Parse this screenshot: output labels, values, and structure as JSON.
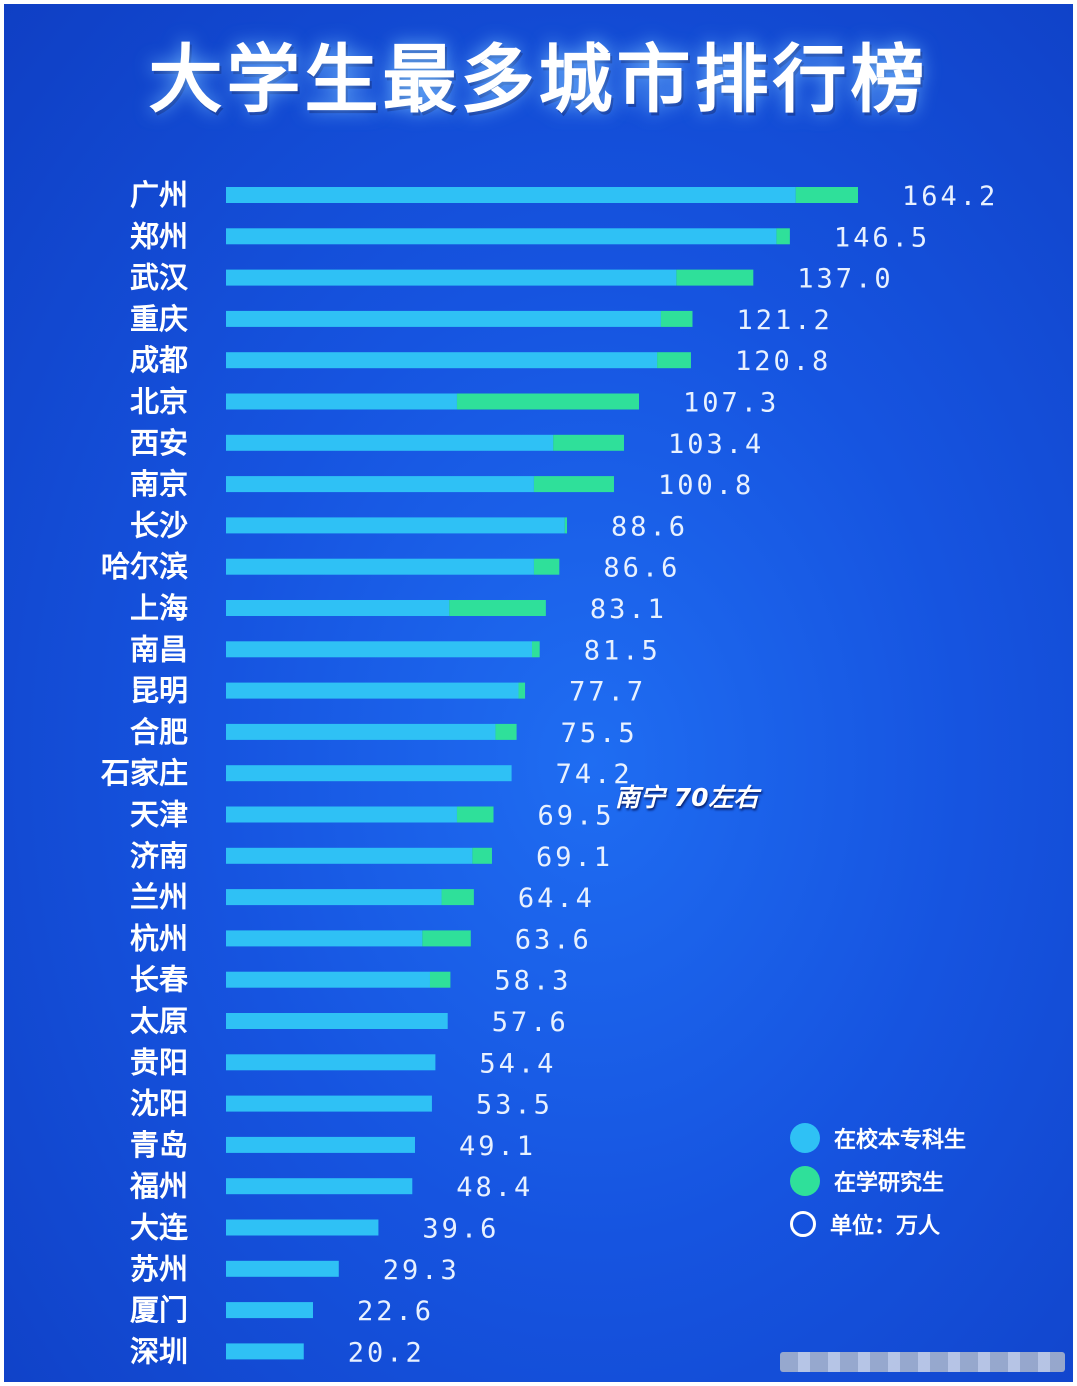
{
  "title": "大学生最多城市排行榜",
  "colors": {
    "undergrad": "#2fc1f5",
    "graduate": "#2fe09a",
    "background": "#1654e0"
  },
  "annotation": "南宁  70左右",
  "legend": {
    "items": [
      {
        "label": "在校本专科生",
        "color": "#2fc1f5",
        "icon": "filled-circle-icon"
      },
      {
        "label": "在学研究生",
        "color": "#2fe09a",
        "icon": "filled-circle-icon"
      },
      {
        "label": "单位：万人",
        "icon": "empty-circle-icon"
      }
    ]
  },
  "chart_data": {
    "type": "bar",
    "orientation": "horizontal",
    "stacked": true,
    "categories": [
      "广州",
      "郑州",
      "武汉",
      "重庆",
      "成都",
      "北京",
      "西安",
      "南京",
      "长沙",
      "哈尔滨",
      "上海",
      "南昌",
      "昆明",
      "合肥",
      "石家庄",
      "天津",
      "济南",
      "兰州",
      "杭州",
      "长春",
      "太原",
      "贵阳",
      "沈阳",
      "青岛",
      "福州",
      "大连",
      "苏州",
      "厦门",
      "深圳"
    ],
    "totals": [
      164.2,
      146.5,
      137.0,
      121.2,
      120.8,
      107.3,
      103.4,
      100.8,
      88.6,
      86.6,
      83.1,
      81.5,
      77.7,
      75.5,
      74.2,
      69.5,
      69.1,
      64.4,
      63.6,
      58.3,
      57.6,
      54.4,
      53.5,
      49.1,
      48.4,
      39.6,
      29.3,
      22.6,
      20.2
    ],
    "total_labels": [
      "164.2",
      "146.5",
      "137.0",
      "121.2",
      "120.8",
      "107.3",
      "103.4",
      "100.8",
      "88.6",
      "86.6",
      "83.1",
      "81.5",
      "77.7",
      "75.5",
      "74.2",
      "69.5",
      "69.1",
      "64.4",
      "63.6",
      "58.3",
      "57.6",
      "54.4",
      "53.5",
      "49.1",
      "48.4",
      "39.6",
      "29.3",
      "22.6",
      "20.2"
    ],
    "series": [
      {
        "name": "在校本专科生",
        "values": [
          148.0,
          143.0,
          117.0,
          113.0,
          112.0,
          60.0,
          85.0,
          80.0,
          88.0,
          80.0,
          58.0,
          79.5,
          76.0,
          70.0,
          74.2,
          60.0,
          64.0,
          56.0,
          51.0,
          53.0,
          57.6,
          54.4,
          53.5,
          49.1,
          48.4,
          39.6,
          29.3,
          22.6,
          20.2
        ]
      },
      {
        "name": "在学研究生",
        "values": [
          16.2,
          3.5,
          20.0,
          8.2,
          8.8,
          47.3,
          18.4,
          20.8,
          0.6,
          6.6,
          25.1,
          2.0,
          1.7,
          5.5,
          0.0,
          9.5,
          5.1,
          8.4,
          12.6,
          5.3,
          0.0,
          0.0,
          0.0,
          0.0,
          0.0,
          0.0,
          0.0,
          0.0,
          0.0
        ]
      }
    ],
    "unit": "万人",
    "xlim": [
      0,
      164.2
    ],
    "grid": false,
    "legend_position": "bottom-right"
  }
}
